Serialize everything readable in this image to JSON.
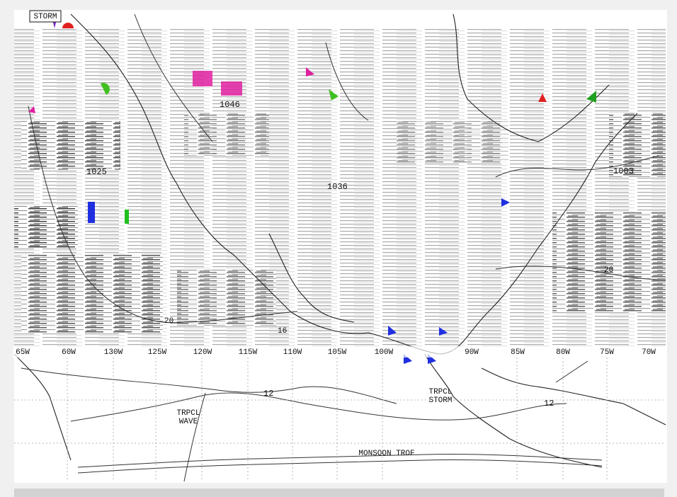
{
  "map": {
    "top_label": "STORM",
    "pressure_centers": [
      "1025",
      "1036",
      "1046",
      "1003"
    ],
    "isotherms": [
      "20",
      "20",
      "16"
    ],
    "longitudes": [
      "65W",
      "60W",
      "130W",
      "125W",
      "120W",
      "115W",
      "110W",
      "105W",
      "100W",
      "90W",
      "85W",
      "80W",
      "75W",
      "70W"
    ],
    "isobar_label": "12",
    "isobar_label_east": "12",
    "tropical_wave": "TRPCL WAVE",
    "tropical_storm": "TRPCL STORM",
    "monsoon_trough": "MONSOON TROF"
  }
}
